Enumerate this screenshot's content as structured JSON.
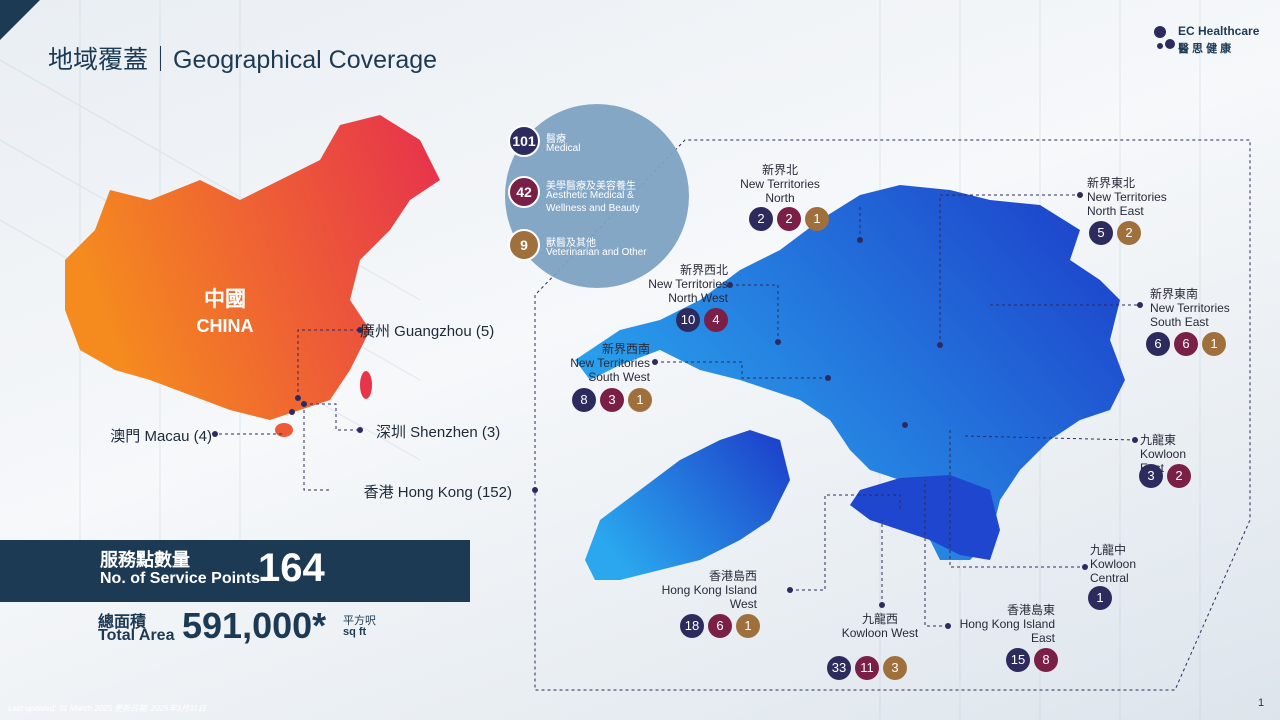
{
  "header": {
    "title": "地域覆蓋｜Geographical Coverage",
    "logo_name": "EC Healthcare",
    "logo_chinese": "醫 思 健 康"
  },
  "legend": [
    {
      "count": 101,
      "zh": "醫療",
      "en": "Medical",
      "color": "#2d2b5e"
    },
    {
      "count": 42,
      "zh": "美學醫療及美容養生",
      "en": "Aesthetic Medical & Wellness and Beauty",
      "color": "#7a1f45"
    },
    {
      "count": 9,
      "zh": "獸醫及其他",
      "en": "Veterinarian and Other",
      "color": "#a0703c"
    }
  ],
  "china": {
    "zh": "中國",
    "en": "CHINA",
    "cities": [
      "廣州 Guangzhou (5)",
      "深圳 Shenzhen (3)",
      "澳門 Macau (4)",
      "香港 Hong Kong (152)"
    ]
  },
  "stats": {
    "points_zh": "服務點數量",
    "points_en": "No. of Service Points",
    "points_value": 164,
    "area_zh": "總面積",
    "area_en": "Total Area",
    "area_value": "591,000*",
    "area_unit_zh": "平方呎",
    "area_unit_en": "sq ft"
  },
  "regions": [
    {
      "zh": "新界北",
      "en": "New Territories North",
      "counts": [
        2,
        2,
        1
      ]
    },
    {
      "zh": "新界東北",
      "en": "New Territories North East",
      "counts": [
        5,
        null,
        2
      ]
    },
    {
      "zh": "新界西北",
      "en": "New Territories North West",
      "counts": [
        10,
        4,
        null
      ]
    },
    {
      "zh": "新界西南",
      "en": "New Territories South West",
      "counts": [
        8,
        3,
        1
      ]
    },
    {
      "zh": "新界東南",
      "en": "New Territories South East",
      "counts": [
        6,
        6,
        1
      ]
    },
    {
      "zh": "九龍東",
      "en": "Kowloon East",
      "counts": [
        3,
        2,
        null
      ]
    },
    {
      "zh": "九龍中",
      "en": "Kowloon Central",
      "counts": [
        1,
        null,
        null
      ]
    },
    {
      "zh": "香港島西",
      "en": "Hong Kong Island West",
      "counts": [
        18,
        6,
        1
      ]
    },
    {
      "zh": "九龍西",
      "en": "Kowloon West",
      "counts": [
        33,
        11,
        3
      ]
    },
    {
      "zh": "香港島東",
      "en": "Hong Kong Island East",
      "counts": [
        15,
        8,
        null
      ]
    }
  ],
  "footer": {
    "updated": "Last updated: 31 March 2025 更新日期: 2025年3月31日",
    "page": "1"
  }
}
